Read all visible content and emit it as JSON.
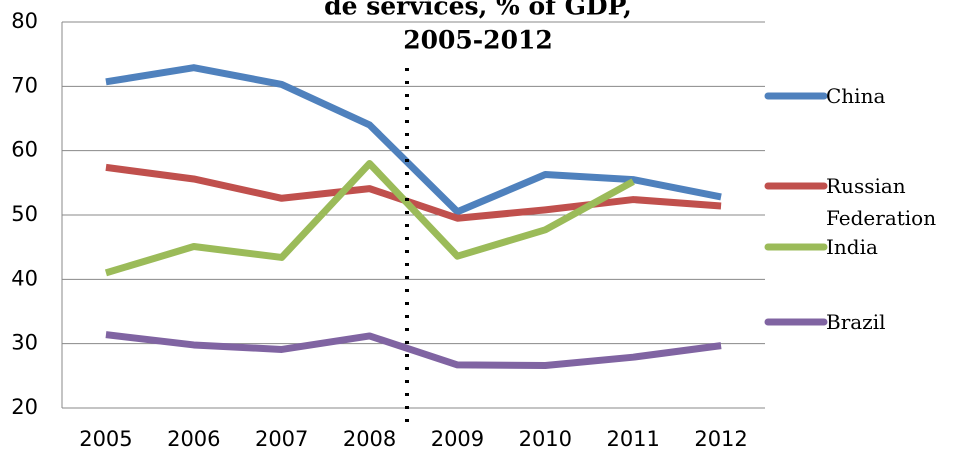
{
  "chart_data": {
    "type": "line",
    "title": [
      "de services, % of GDP,",
      "2005-2012"
    ],
    "categories": [
      "2005",
      "2006",
      "2007",
      "2008",
      "2009",
      "2010",
      "2011",
      "2012"
    ],
    "series": [
      {
        "name": "China",
        "color": "#4f81bd",
        "values": [
          70.7,
          72.9,
          70.3,
          64.0,
          50.5,
          56.3,
          55.5,
          52.8
        ]
      },
      {
        "name": "Russian Federation",
        "color": "#c0504d",
        "values": [
          57.4,
          55.6,
          52.6,
          54.1,
          49.5,
          50.8,
          52.4,
          51.4
        ]
      },
      {
        "name": "India",
        "color": "#9bbb59",
        "values": [
          41.0,
          45.1,
          43.4,
          58.0,
          43.6,
          47.7,
          55.2,
          null
        ]
      },
      {
        "name": "Brazil",
        "color": "#8064a2",
        "values": [
          31.4,
          29.8,
          29.1,
          31.2,
          26.7,
          26.6,
          27.9,
          29.7
        ]
      }
    ],
    "ylim": [
      20,
      80
    ],
    "yticks": [
      20,
      30,
      40,
      50,
      60,
      70,
      80
    ],
    "grid": true,
    "legend": "right"
  }
}
